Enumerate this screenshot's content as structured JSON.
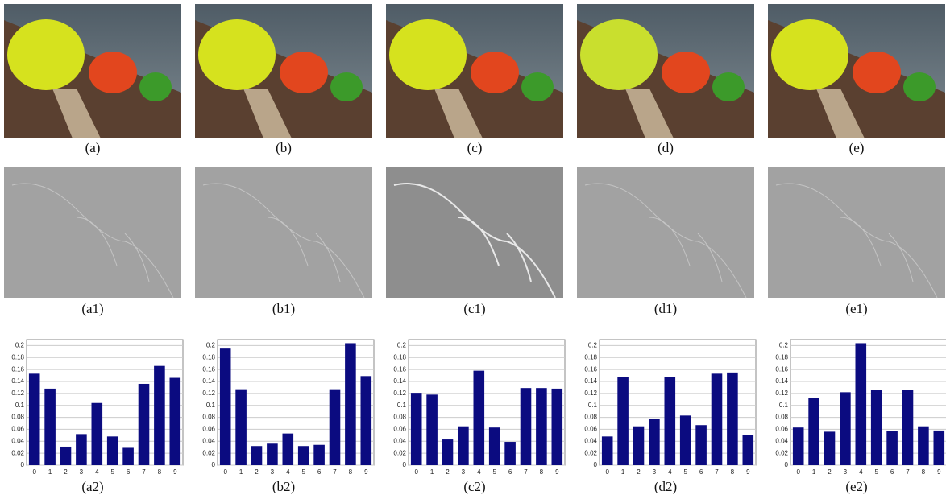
{
  "figure": {
    "image_captions": [
      "(a)",
      "(b)",
      "(c)",
      "(d)",
      "(e)"
    ],
    "edge_captions": [
      "(a1)",
      "(b1)",
      "(c1)",
      "(d1)",
      "(e1)"
    ]
  },
  "chart_data": [
    {
      "type": "bar",
      "caption": "(a2)",
      "categories": [
        "0",
        "1",
        "2",
        "3",
        "4",
        "5",
        "6",
        "7",
        "8",
        "9"
      ],
      "values": [
        0.153,
        0.128,
        0.031,
        0.052,
        0.104,
        0.048,
        0.029,
        0.136,
        0.166,
        0.146
      ],
      "color": "#0b0b80",
      "ylim": [
        0,
        0.21
      ],
      "yticks": [
        0,
        0.02,
        0.04,
        0.06,
        0.08,
        0.1,
        0.12,
        0.14,
        0.16,
        0.18,
        0.2
      ],
      "grid": true
    },
    {
      "type": "bar",
      "caption": "(b2)",
      "categories": [
        "0",
        "1",
        "2",
        "3",
        "4",
        "5",
        "6",
        "7",
        "8",
        "9"
      ],
      "values": [
        0.195,
        0.127,
        0.032,
        0.036,
        0.053,
        0.032,
        0.034,
        0.127,
        0.204,
        0.149
      ],
      "color": "#0b0b80",
      "ylim": [
        0,
        0.21
      ],
      "yticks": [
        0,
        0.02,
        0.04,
        0.06,
        0.08,
        0.1,
        0.12,
        0.14,
        0.16,
        0.18,
        0.2
      ],
      "grid": true
    },
    {
      "type": "bar",
      "caption": "(c2)",
      "categories": [
        "0",
        "1",
        "2",
        "3",
        "4",
        "5",
        "6",
        "7",
        "8",
        "9"
      ],
      "values": [
        0.121,
        0.118,
        0.043,
        0.065,
        0.158,
        0.063,
        0.039,
        0.129,
        0.129,
        0.128
      ],
      "color": "#0b0b80",
      "ylim": [
        0,
        0.21
      ],
      "yticks": [
        0,
        0.02,
        0.04,
        0.06,
        0.08,
        0.1,
        0.12,
        0.14,
        0.16,
        0.18,
        0.2
      ],
      "grid": true
    },
    {
      "type": "bar",
      "caption": "(d2)",
      "categories": [
        "0",
        "1",
        "2",
        "3",
        "4",
        "5",
        "6",
        "7",
        "8",
        "9"
      ],
      "values": [
        0.048,
        0.148,
        0.065,
        0.078,
        0.148,
        0.083,
        0.067,
        0.153,
        0.155,
        0.05
      ],
      "color": "#0b0b80",
      "ylim": [
        0,
        0.21
      ],
      "yticks": [
        0,
        0.02,
        0.04,
        0.06,
        0.08,
        0.1,
        0.12,
        0.14,
        0.16,
        0.18,
        0.2
      ],
      "grid": true
    },
    {
      "type": "bar",
      "caption": "(e2)",
      "categories": [
        "0",
        "1",
        "2",
        "3",
        "4",
        "5",
        "6",
        "7",
        "8",
        "9"
      ],
      "values": [
        0.063,
        0.113,
        0.056,
        0.122,
        0.204,
        0.126,
        0.057,
        0.126,
        0.065,
        0.058
      ],
      "color": "#0b0b80",
      "ylim": [
        0,
        0.21
      ],
      "yticks": [
        0,
        0.02,
        0.04,
        0.06,
        0.08,
        0.1,
        0.12,
        0.14,
        0.16,
        0.18,
        0.2
      ],
      "grid": true
    }
  ]
}
